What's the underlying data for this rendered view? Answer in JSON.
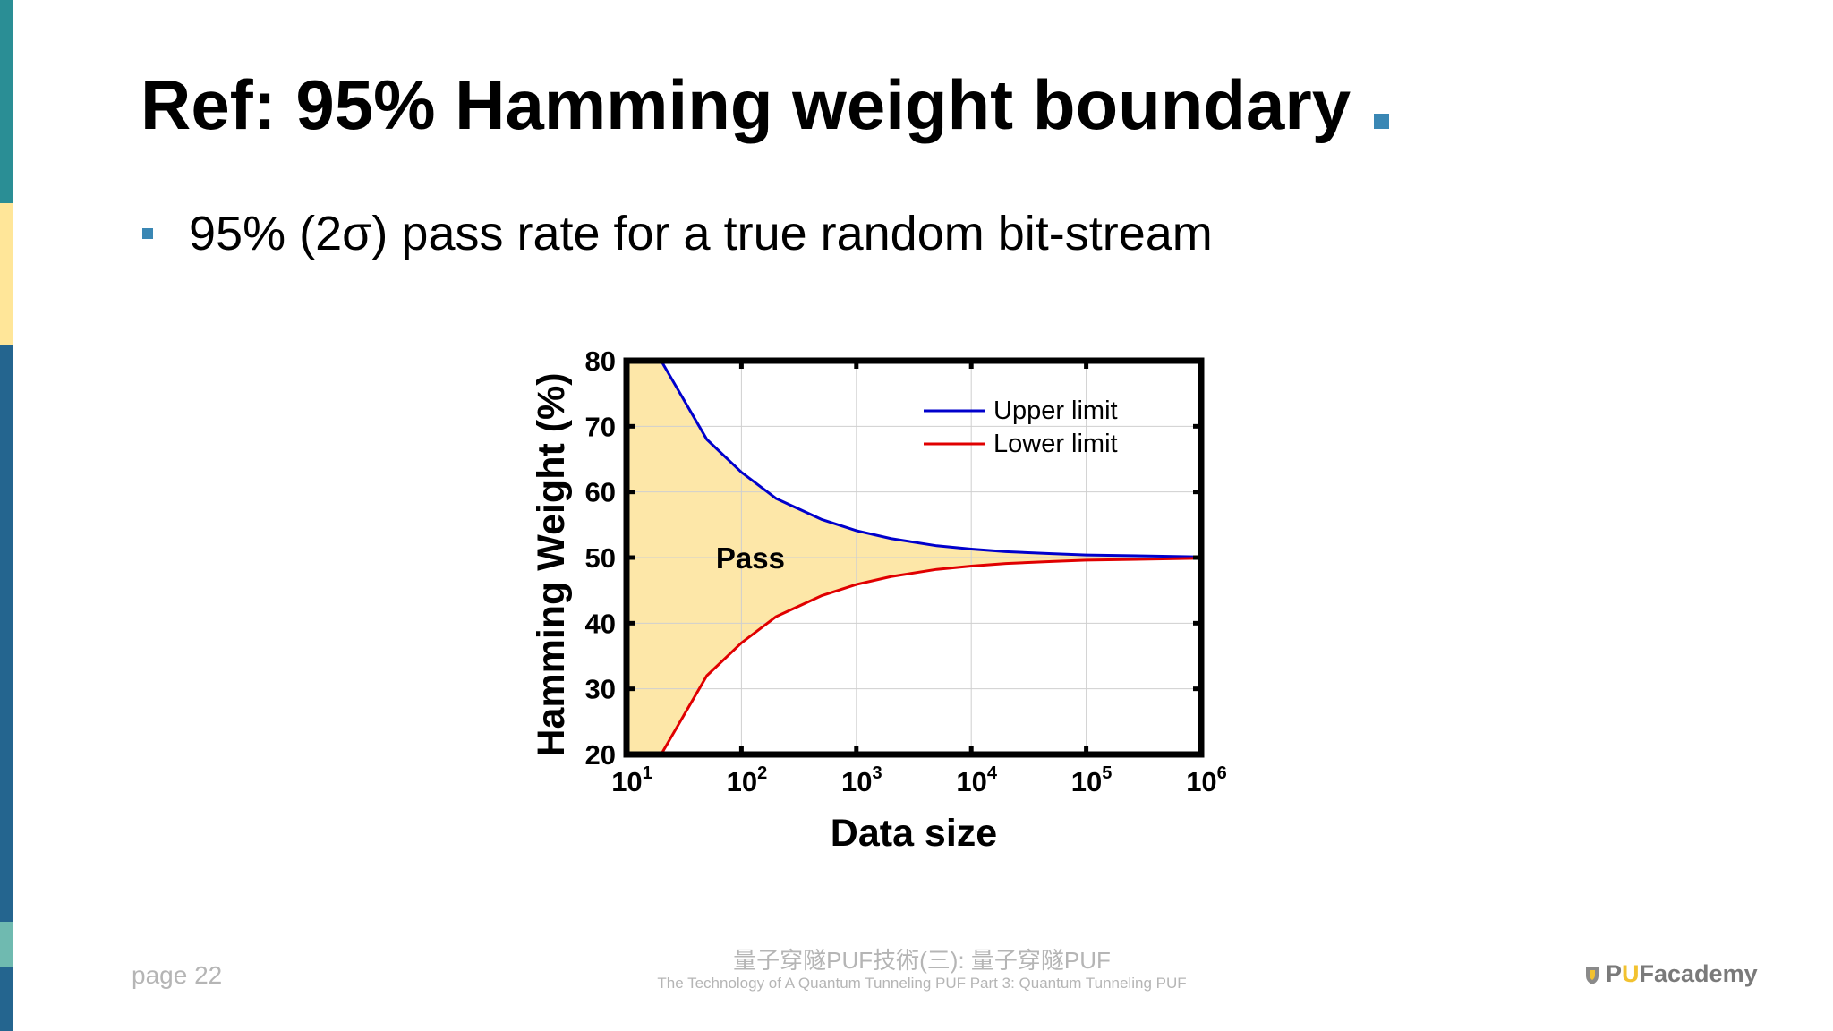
{
  "slide": {
    "title": "Ref: 95% Hamming weight boundary",
    "bullet": "95% (2σ) pass rate for a true random bit-stream",
    "page_label": "page 22",
    "footer_cn": "量子穿隧PUF技術(三): 量子穿隧PUF",
    "footer_en": "The Technology of A Quantum Tunneling PUF Part 3: Quantum Tunneling PUF",
    "logo": {
      "p": "P",
      "u": "U",
      "rest": "Facademy"
    },
    "colors": {
      "accent": "#3a87b4",
      "left_bar": [
        "#2a8e95",
        "#ffe699",
        "#24658f",
        "#6fbab0"
      ]
    }
  },
  "chart_data": {
    "type": "area",
    "xlabel": "Data size",
    "ylabel": "Hamming Weight (%)",
    "x_scale": "log",
    "xlim": [
      10,
      1000000
    ],
    "ylim": [
      20,
      80
    ],
    "x_ticks": [
      {
        "value": 10,
        "base": "10",
        "exp": "1"
      },
      {
        "value": 100,
        "base": "10",
        "exp": "2"
      },
      {
        "value": 1000,
        "base": "10",
        "exp": "3"
      },
      {
        "value": 10000,
        "base": "10",
        "exp": "4"
      },
      {
        "value": 100000,
        "base": "10",
        "exp": "5"
      },
      {
        "value": 1000000,
        "base": "10",
        "exp": "6"
      }
    ],
    "y_ticks": [
      20,
      30,
      40,
      50,
      60,
      70,
      80
    ],
    "grid": true,
    "legend_position": "top-right",
    "annotation": "Pass",
    "fill_color": "#fde7a8",
    "series": [
      {
        "name": "Upper limit",
        "color": "#0000cc",
        "x": [
          20,
          50,
          100,
          200,
          500,
          1000,
          2000,
          5000,
          10000,
          20000,
          50000,
          100000,
          1000000
        ],
        "values": [
          80,
          68,
          63,
          59,
          55.8,
          54.1,
          52.9,
          51.8,
          51.3,
          50.9,
          50.6,
          50.4,
          50.1
        ]
      },
      {
        "name": "Lower limit",
        "color": "#e00000",
        "x": [
          20,
          50,
          100,
          200,
          500,
          1000,
          2000,
          5000,
          10000,
          20000,
          50000,
          100000,
          1000000
        ],
        "values": [
          20,
          32,
          37,
          41,
          44.2,
          45.9,
          47.1,
          48.2,
          48.7,
          49.1,
          49.4,
          49.6,
          49.9
        ]
      }
    ]
  }
}
